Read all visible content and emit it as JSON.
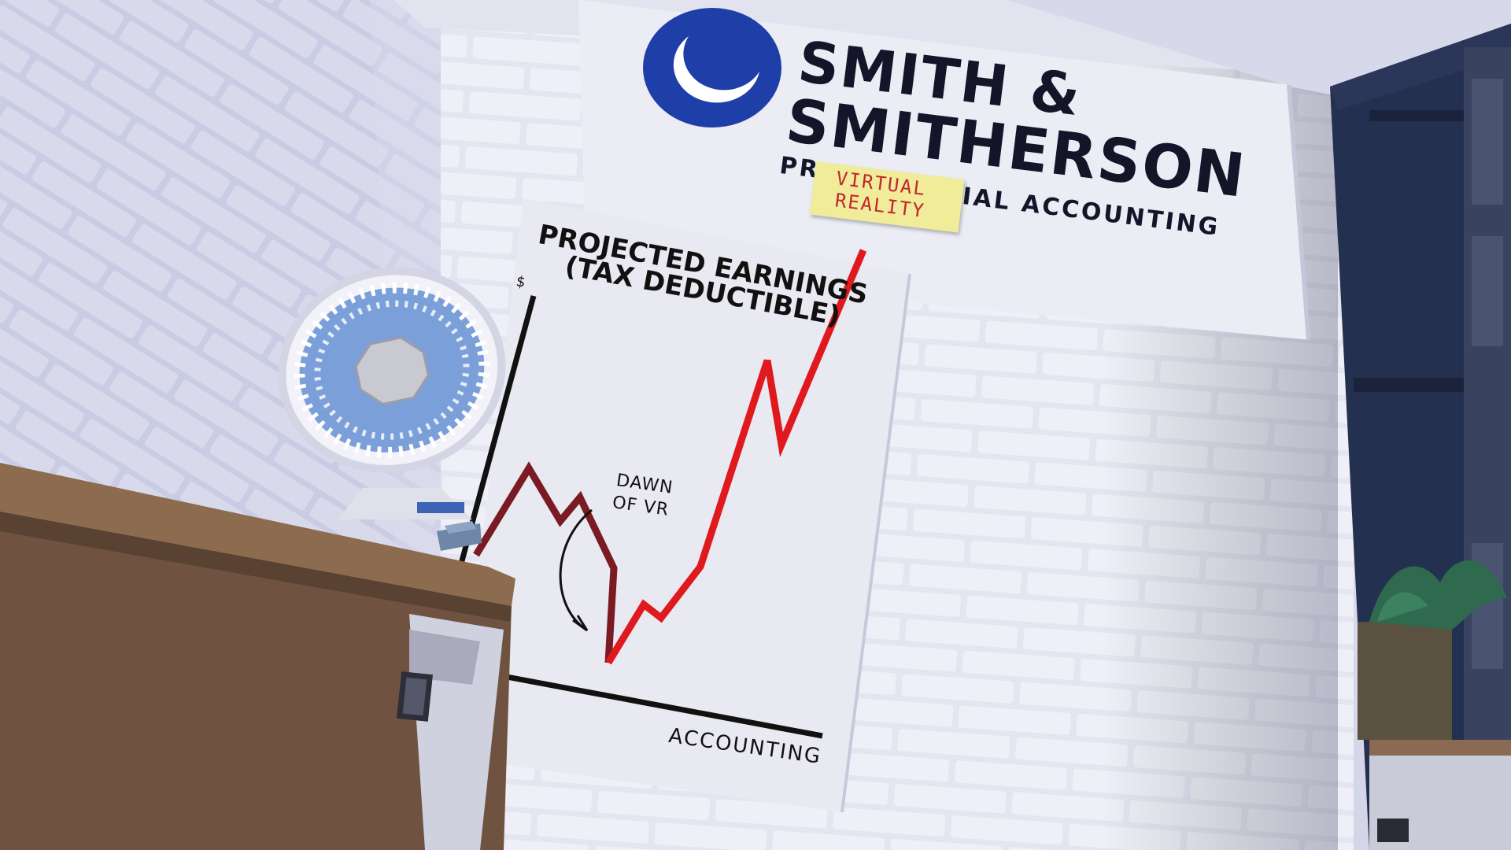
{
  "company": {
    "name_line1": "SMITH &",
    "name_line2": "SMITHERSON",
    "tagline_left": "PR",
    "tagline_right": "IAL ACCOUNTING"
  },
  "sticky_note": {
    "line1": "VIRTUAL",
    "line2": "REALITY"
  },
  "poster": {
    "title_line1": "PROJECTED EARNINGS",
    "title_line2": "(TAX DEDUCTIBLE)",
    "y_axis_label": "$",
    "x_axis_label": "ACCOUNTING",
    "annotation_line1": "DAWN",
    "annotation_line2": "OF VR"
  },
  "colors": {
    "logo_blue": "#1f3fa8",
    "trend_dark": "#7a1a22",
    "trend_bright": "#e0191e",
    "sticky": "#f0ec9a",
    "desk": "#7a5c44"
  }
}
